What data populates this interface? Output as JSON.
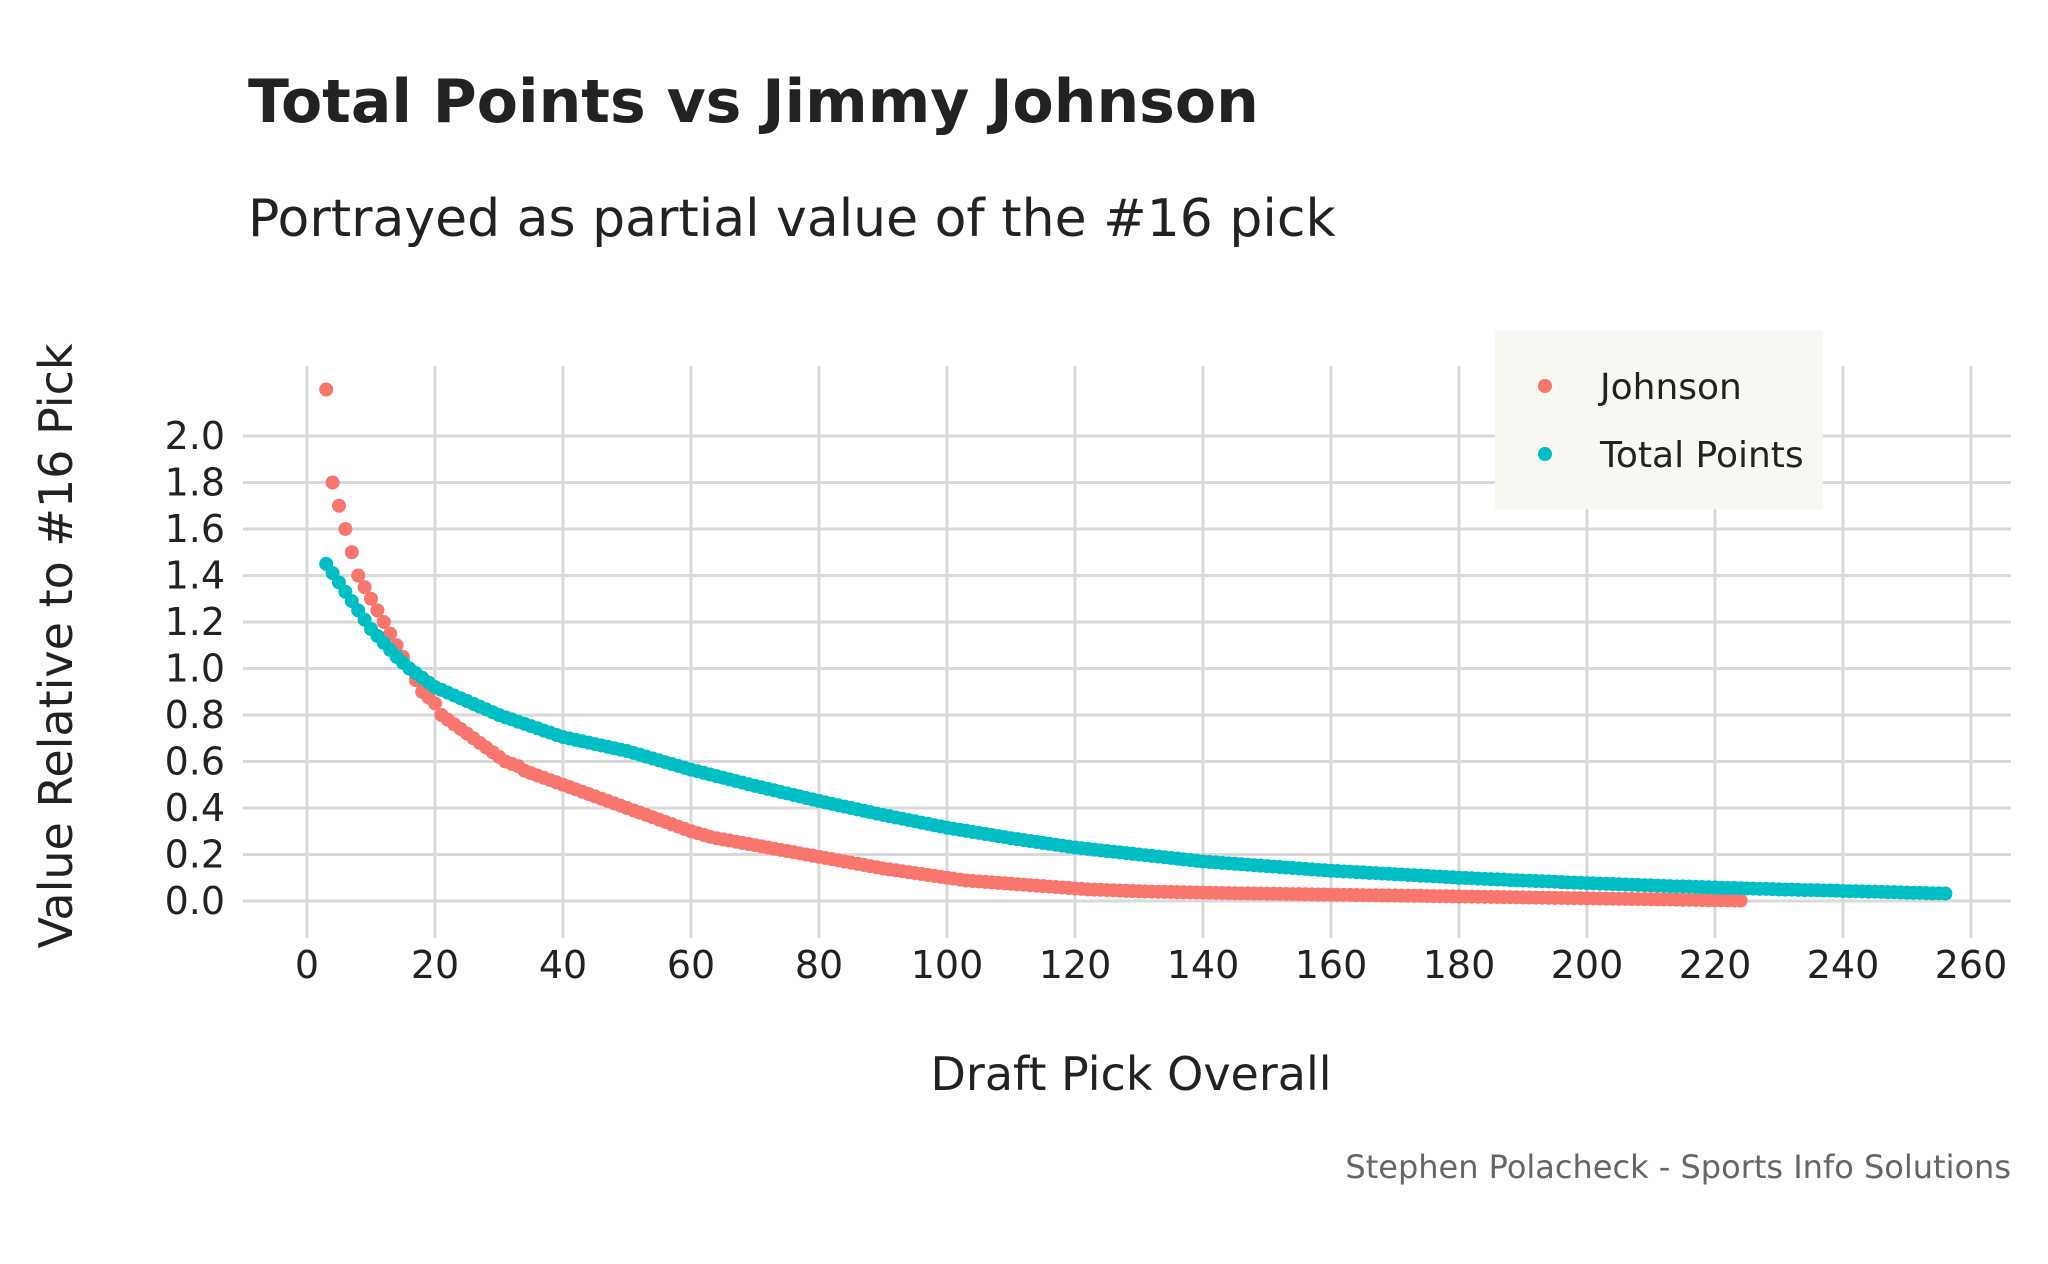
{
  "chart_data": {
    "type": "scatter",
    "title": "Total Points vs Jimmy Johnson",
    "subtitle": "Portrayed as partial value of the #16 pick",
    "xlabel": "Draft Pick Overall",
    "ylabel": "Value Relative to #16 Pick",
    "caption": "Stephen Polacheck - Sports Info Solutions",
    "xlim": [
      -10,
      265
    ],
    "ylim": [
      -0.05,
      2.3
    ],
    "x_ticks": [
      "0",
      "20",
      "40",
      "60",
      "80",
      "100",
      "120",
      "140",
      "160",
      "180",
      "200",
      "220",
      "240",
      "260"
    ],
    "x_tick_values": [
      0,
      20,
      40,
      60,
      80,
      100,
      120,
      140,
      160,
      180,
      200,
      220,
      240,
      260
    ],
    "y_ticks": [
      "0.0",
      "0.2",
      "0.4",
      "0.6",
      "0.8",
      "1.0",
      "1.2",
      "1.4",
      "1.6",
      "1.8",
      "2.0"
    ],
    "y_tick_values": [
      0,
      0.2,
      0.4,
      0.6,
      0.8,
      1.0,
      1.2,
      1.4,
      1.6,
      1.8,
      2.0
    ],
    "grid": true,
    "legend_placement": "top-right",
    "series": [
      {
        "name": "Johnson",
        "color": "#F8766D",
        "x_start": 3,
        "values": [
          2.2,
          1.8,
          1.7,
          1.6,
          1.5,
          1.4,
          1.35,
          1.3,
          1.25,
          1.2,
          1.15,
          1.1,
          1.05,
          1.0,
          0.95,
          0.9,
          0.875,
          0.85,
          0.8,
          0.78,
          0.76,
          0.74,
          0.72,
          0.7,
          0.68,
          0.66,
          0.64,
          0.62,
          0.6,
          0.59,
          0.58,
          0.56,
          0.55,
          0.54,
          0.53,
          0.52,
          0.51,
          0.5,
          0.49,
          0.48,
          0.47,
          0.46,
          0.45,
          0.44,
          0.43,
          0.42,
          0.41,
          0.4,
          0.39,
          0.38,
          0.37,
          0.36,
          0.35,
          0.34,
          0.33,
          0.32,
          0.31,
          0.3,
          0.292,
          0.284,
          0.276,
          0.27,
          0.265,
          0.26,
          0.255,
          0.25,
          0.245,
          0.24,
          0.235,
          0.23,
          0.225,
          0.22,
          0.215,
          0.21,
          0.205,
          0.2,
          0.195,
          0.19,
          0.185,
          0.18,
          0.175,
          0.17,
          0.165,
          0.16,
          0.155,
          0.15,
          0.145,
          0.14,
          0.136,
          0.132,
          0.128,
          0.124,
          0.12,
          0.116,
          0.112,
          0.108,
          0.104,
          0.1,
          0.096,
          0.092,
          0.088,
          0.086,
          0.084,
          0.082,
          0.08,
          0.078,
          0.076,
          0.074,
          0.072,
          0.07,
          0.068,
          0.066,
          0.064,
          0.062,
          0.06,
          0.058,
          0.056,
          0.054,
          0.052,
          0.05,
          0.049,
          0.048,
          0.047,
          0.046,
          0.045,
          0.044,
          0.043,
          0.042,
          0.041,
          0.04,
          0.0395,
          0.039,
          0.0385,
          0.038,
          0.0375,
          0.037,
          0.0365,
          0.036,
          0.0355,
          0.035,
          0.0345,
          0.034,
          0.0335,
          0.033,
          0.0326,
          0.0322,
          0.0318,
          0.0314,
          0.031,
          0.0306,
          0.0302,
          0.0298,
          0.0294,
          0.029,
          0.0286,
          0.0282,
          0.0278,
          0.0274,
          0.027,
          0.0266,
          0.0262,
          0.0258,
          0.0254,
          0.025,
          0.0246,
          0.0242,
          0.0238,
          0.0234,
          0.023,
          0.0226,
          0.0222,
          0.0218,
          0.0214,
          0.021,
          0.0206,
          0.0202,
          0.0198,
          0.0194,
          0.019,
          0.0186,
          0.0182,
          0.0178,
          0.0174,
          0.017,
          0.0166,
          0.0162,
          0.0158,
          0.0154,
          0.015,
          0.0146,
          0.0142,
          0.0138,
          0.0134,
          0.013,
          0.0126,
          0.0122,
          0.0118,
          0.0114,
          0.011,
          0.0106,
          0.0102,
          0.0098,
          0.0094,
          0.009,
          0.0086,
          0.0082,
          0.0078,
          0.0074,
          0.007,
          0.0066,
          0.0062,
          0.0058,
          0.0054,
          0.005,
          0.0046,
          0.0042,
          0.0038,
          0.0034,
          0.003,
          0.0026,
          0.0023,
          0.002
        ]
      },
      {
        "name": "Total Points",
        "color": "#00BFC4",
        "x_start": 3,
        "values": [
          1.45,
          1.41,
          1.37,
          1.33,
          1.29,
          1.25,
          1.21,
          1.17,
          1.14,
          1.11,
          1.08,
          1.05,
          1.025,
          1.0,
          0.98,
          0.96,
          0.94,
          0.92,
          0.908,
          0.896,
          0.884,
          0.872,
          0.86,
          0.848,
          0.836,
          0.824,
          0.812,
          0.8,
          0.79,
          0.781,
          0.771,
          0.762,
          0.752,
          0.743,
          0.733,
          0.724,
          0.714,
          0.705,
          0.699,
          0.693,
          0.687,
          0.681,
          0.675,
          0.669,
          0.663,
          0.657,
          0.651,
          0.645,
          0.637,
          0.629,
          0.621,
          0.613,
          0.605,
          0.597,
          0.589,
          0.581,
          0.573,
          0.565,
          0.558,
          0.551,
          0.544,
          0.537,
          0.53,
          0.523,
          0.516,
          0.509,
          0.502,
          0.495,
          0.489,
          0.482,
          0.476,
          0.469,
          0.463,
          0.456,
          0.45,
          0.443,
          0.437,
          0.43,
          0.424,
          0.418,
          0.412,
          0.406,
          0.4,
          0.394,
          0.388,
          0.382,
          0.376,
          0.37,
          0.365,
          0.359,
          0.354,
          0.348,
          0.343,
          0.337,
          0.332,
          0.326,
          0.321,
          0.315,
          0.311,
          0.306,
          0.302,
          0.297,
          0.293,
          0.288,
          0.284,
          0.279,
          0.275,
          0.27,
          0.266,
          0.262,
          0.258,
          0.254,
          0.25,
          0.246,
          0.242,
          0.238,
          0.234,
          0.23,
          0.227,
          0.224,
          0.221,
          0.218,
          0.215,
          0.212,
          0.209,
          0.206,
          0.203,
          0.2,
          0.197,
          0.194,
          0.191,
          0.188,
          0.185,
          0.182,
          0.179,
          0.176,
          0.173,
          0.17,
          0.168,
          0.166,
          0.164,
          0.162,
          0.16,
          0.158,
          0.156,
          0.154,
          0.152,
          0.15,
          0.148,
          0.146,
          0.144,
          0.142,
          0.14,
          0.138,
          0.136,
          0.134,
          0.132,
          0.13,
          0.129,
          0.127,
          0.126,
          0.124,
          0.123,
          0.121,
          0.12,
          0.118,
          0.117,
          0.115,
          0.114,
          0.112,
          0.111,
          0.109,
          0.108,
          0.106,
          0.105,
          0.103,
          0.102,
          0.1,
          0.099,
          0.098,
          0.096,
          0.095,
          0.094,
          0.093,
          0.092,
          0.09,
          0.089,
          0.088,
          0.087,
          0.086,
          0.085,
          0.084,
          0.083,
          0.081,
          0.08,
          0.079,
          0.078,
          0.077,
          0.076,
          0.075,
          0.074,
          0.073,
          0.072,
          0.071,
          0.07,
          0.069,
          0.068,
          0.067,
          0.066,
          0.065,
          0.064,
          0.063,
          0.063,
          0.062,
          0.061,
          0.06,
          0.059,
          0.058,
          0.057,
          0.056,
          0.056,
          0.055,
          0.054,
          0.053,
          0.052,
          0.052,
          0.051,
          0.05,
          0.049,
          0.049,
          0.048,
          0.047,
          0.047,
          0.046,
          0.045,
          0.045,
          0.044,
          0.043,
          0.042,
          0.042,
          0.041,
          0.04,
          0.04,
          0.039,
          0.038,
          0.038,
          0.037,
          0.036,
          0.035,
          0.035,
          0.034,
          0.033,
          0.033,
          0.032
        ]
      }
    ]
  }
}
